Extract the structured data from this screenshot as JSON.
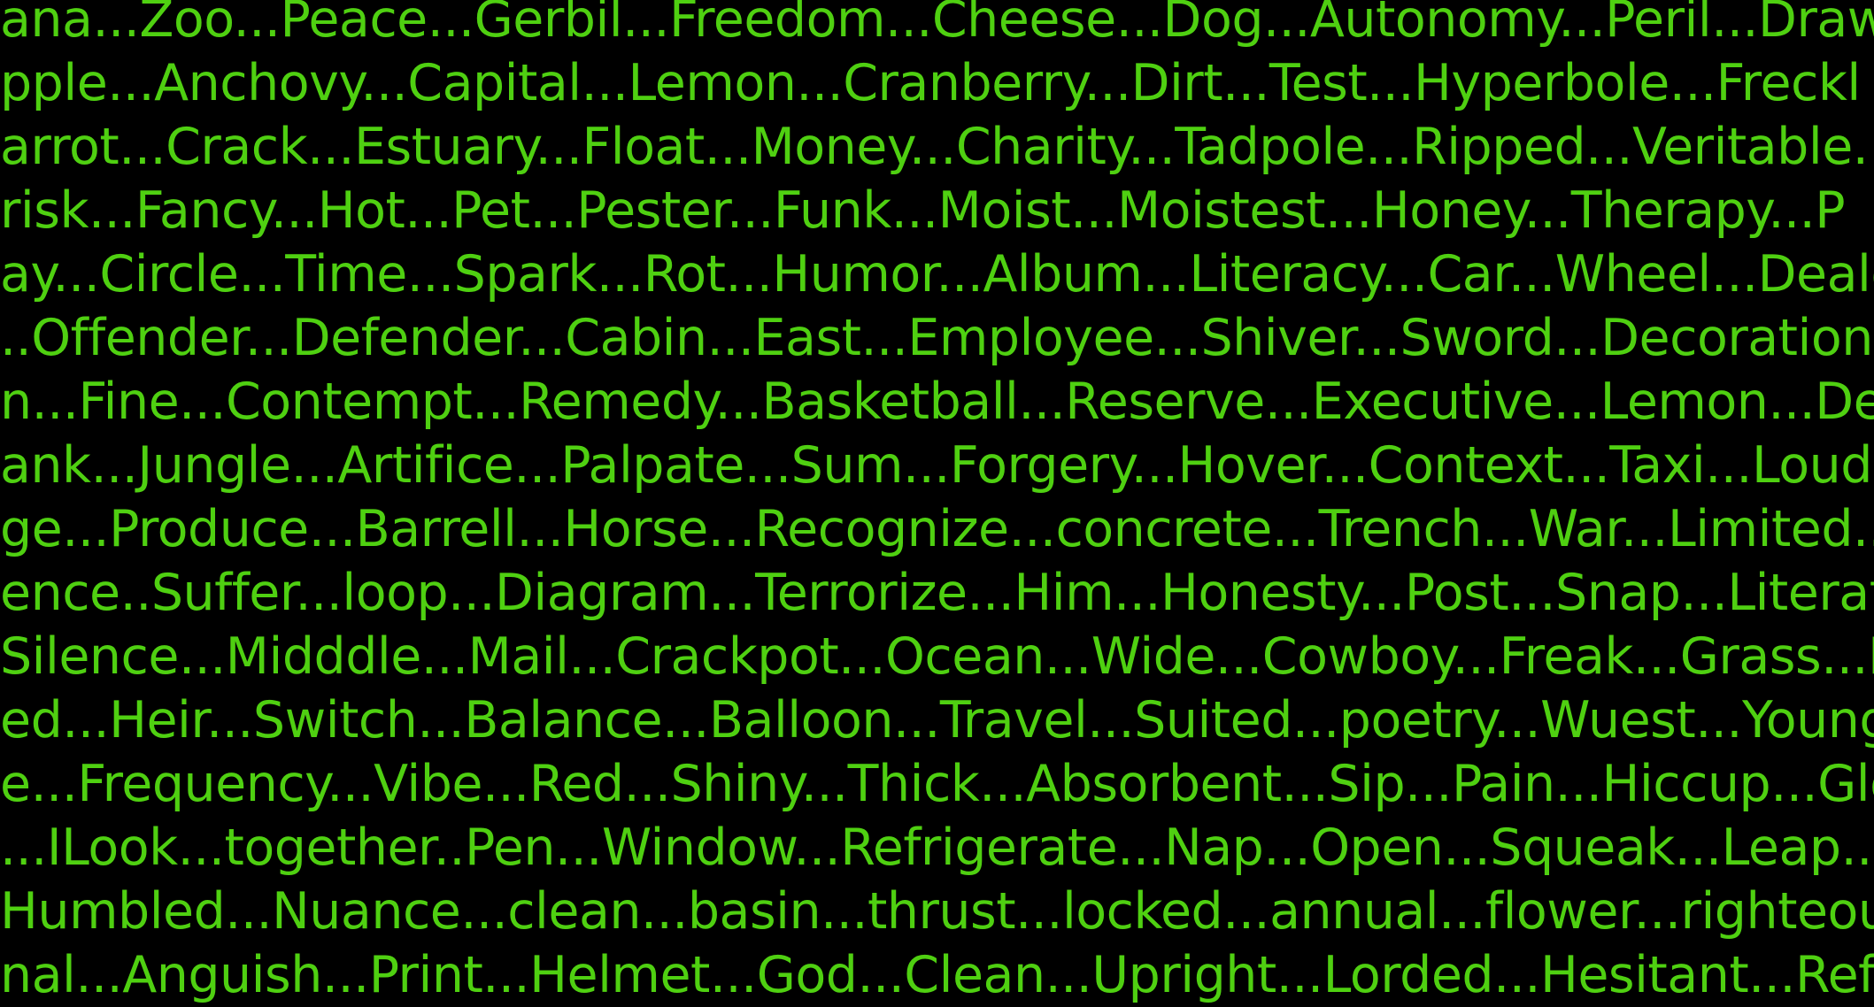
{
  "colors": {
    "background": "#000000",
    "text": "#4fd011"
  },
  "lines": [
    "ana...Zoo...Peace...Gerbil...Freedom...Cheese...Dog...Autonomy...Peril...Draw",
    "pple...Anchovy...Capital...Lemon...Cranberry...Dirt...Test...Hyperbole...Freckl",
    "arrot...Crack...Estuary...Float...Money...Charity...Tadpole...Ripped...Veritable.",
    "risk...Fancy...Hot...Pet...Pester...Funk...Moist...Moistest...Honey...Therapy...P",
    "ay...Circle...Time...Spark...Rot...Humor...Album...Literacy...Car...Wheel...Deale",
    "..Offender...Defender...Cabin...East...Employee...Shiver...Sword...Decoration.",
    "n...Fine...Contempt...Remedy...Basketball...Reserve...Executive...Lemon...Des",
    "ank...Jungle...Artifice...Palpate...Sum...Forgery...Hover...Context...Taxi...Loud.",
    "ge...Produce...Barrell...Horse...Recognize...concrete...Trench...War...Limited...",
    "ence..Suffer...loop...Diagram...Terrorize...Him...Honesty...Post...Snap...Literatu",
    "Silence...Midddle...Mail...Crackpot...Ocean...Wide...Cowboy...Freak...Grass...P",
    "ed...Heir...Switch...Balance...Balloon...Travel...Suited...poetry...Wuest...Young",
    "e...Frequency...Vibe...Red...Shiny...Thick...Absorbent...Sip...Pain...Hiccup...Glo",
    "...ILook...together..Pen...Window...Refrigerate...Nap...Open...Squeak...Leap...T",
    "Humbled...Nuance...clean...basin...thrust...locked...annual...flower...righteous",
    "nal...Anguish...Print...Helmet...God...Clean...Upright...Lorded...Hesitant...Refl"
  ]
}
